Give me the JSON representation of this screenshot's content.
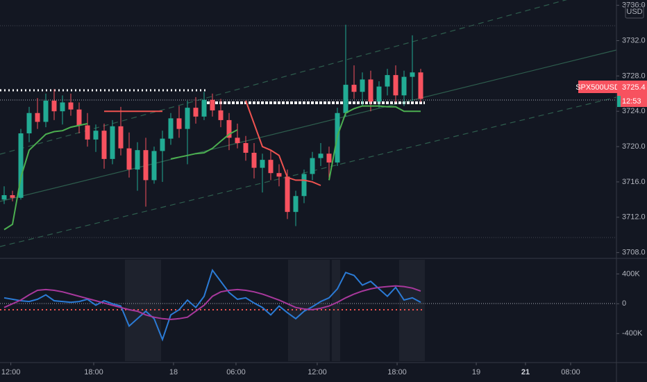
{
  "chart_data": [
    {
      "type": "candlestick",
      "currency": "USD",
      "symbol": "SPX500USD",
      "last_price": 3725.4,
      "countdown": "12:53",
      "up_color": "#22ab94",
      "down_color": "#f7525f",
      "xlim": [
        -0.5,
        73.5
      ],
      "xticks": [
        {
          "value": 0.8,
          "label": "12:00"
        },
        {
          "value": 10.75,
          "label": "18:00"
        },
        {
          "value": 20.33,
          "label": "18"
        },
        {
          "value": 27.83,
          "label": "06:00"
        },
        {
          "value": 37.58,
          "label": "12:00"
        },
        {
          "value": 47.17,
          "label": "18:00"
        },
        {
          "value": 56.67,
          "label": "19"
        },
        {
          "value": 62.58,
          "label": "21"
        },
        {
          "value": 68,
          "label": "08:00"
        }
      ],
      "ylim": [
        3707.5,
        3736.6
      ],
      "yticks": [
        {
          "value": 3708,
          "label": "3708.0"
        },
        {
          "value": 3712,
          "label": "3712.0"
        },
        {
          "value": 3716,
          "label": "3716.0"
        },
        {
          "value": 3720,
          "label": "3720.0"
        },
        {
          "value": 3724,
          "label": "3724.0"
        },
        {
          "value": 3728,
          "label": "3728.0"
        },
        {
          "value": 3732,
          "label": "3732.0"
        },
        {
          "value": 3736,
          "label": "3736.0"
        }
      ],
      "ohlc": [
        [
          3714.0,
          3715.5,
          3713.5,
          3714.5
        ],
        [
          3714.5,
          3715,
          3713.8,
          3714.2
        ],
        [
          3714.2,
          3722,
          3714,
          3721.5
        ],
        [
          3721.5,
          3724.5,
          3720.5,
          3723.8
        ],
        [
          3723.8,
          3725.5,
          3722,
          3722.8
        ],
        [
          3722.8,
          3726,
          3722.2,
          3725.2
        ],
        [
          3725.2,
          3726.5,
          3723,
          3724
        ],
        [
          3724,
          3725.8,
          3722.5,
          3725
        ],
        [
          3725,
          3726,
          3723.5,
          3724.2
        ],
        [
          3724.2,
          3725,
          3721.5,
          3722.4
        ],
        [
          3722.4,
          3723.8,
          3720,
          3720.8
        ],
        [
          3720.8,
          3722.5,
          3719.4,
          3721.8
        ],
        [
          3721.8,
          3722.6,
          3717.5,
          3718.6
        ],
        [
          3718.6,
          3723,
          3718,
          3722.3
        ],
        [
          3722.3,
          3724.5,
          3719,
          3719.8
        ],
        [
          3719.8,
          3721.6,
          3716.5,
          3717.4
        ],
        [
          3717.4,
          3720.5,
          3715,
          3719.6
        ],
        [
          3719.6,
          3721,
          3713.2,
          3716.2
        ],
        [
          3716.2,
          3720,
          3715.8,
          3719.5
        ],
        [
          3719.5,
          3721.8,
          3716,
          3720.9
        ],
        [
          3720.9,
          3723.8,
          3720.2,
          3723.2
        ],
        [
          3723.2,
          3724.6,
          3721,
          3722
        ],
        [
          3722,
          3725.2,
          3718,
          3724.4
        ],
        [
          3724.4,
          3725.6,
          3722.6,
          3723.4
        ],
        [
          3723.4,
          3726.2,
          3723,
          3725.3
        ],
        [
          3725.3,
          3726,
          3723.4,
          3724.1
        ],
        [
          3724.1,
          3725.4,
          3722.2,
          3723
        ],
        [
          3723,
          3723.8,
          3719.6,
          3721
        ],
        [
          3721,
          3722.6,
          3719.8,
          3720.4
        ],
        [
          3720.4,
          3721.2,
          3718.4,
          3719.3
        ],
        [
          3719.3,
          3720.4,
          3716.4,
          3717.6
        ],
        [
          3717.6,
          3719.2,
          3714.8,
          3718.5
        ],
        [
          3718.5,
          3719.6,
          3716.2,
          3717
        ],
        [
          3717,
          3718,
          3715.5,
          3716.6
        ],
        [
          3716.6,
          3717.4,
          3711.8,
          3712.6
        ],
        [
          3712.6,
          3715,
          3711,
          3714.4
        ],
        [
          3714.4,
          3717.4,
          3713.6,
          3716.9
        ],
        [
          3716.9,
          3719.4,
          3716.2,
          3718.7
        ],
        [
          3718.7,
          3720.4,
          3717.8,
          3719.2
        ],
        [
          3719.2,
          3720,
          3716.4,
          3718.2
        ],
        [
          3718.2,
          3724.4,
          3717.8,
          3723.8
        ],
        [
          3723.8,
          3733.8,
          3723.4,
          3727
        ],
        [
          3727,
          3729.2,
          3725.4,
          3726.2
        ],
        [
          3726.2,
          3728.4,
          3724.6,
          3727.6
        ],
        [
          3727.6,
          3728.6,
          3724,
          3725.1
        ],
        [
          3725.1,
          3727.4,
          3724.4,
          3726.8
        ],
        [
          3726.8,
          3728.8,
          3725.8,
          3728.1
        ],
        [
          3728.1,
          3729.2,
          3725,
          3725.8
        ],
        [
          3725.8,
          3728.6,
          3724.6,
          3727.9
        ],
        [
          3727.9,
          3732.6,
          3725.2,
          3728.4
        ],
        [
          3728.4,
          3728.8,
          3725,
          3725.4
        ]
      ],
      "series": [
        {
          "color": "#4caf50",
          "values": [
            3710.6,
            3711.2,
            3716.5,
            3719.6,
            3720.5,
            3721.4,
            3721.7,
            3721.8,
            3722.2,
            3722.4,
            3722.6,
            null,
            null,
            null,
            null,
            null,
            null,
            null,
            null,
            null,
            3718.6,
            3718.8,
            3719,
            3719.2,
            3719.3,
            3719.8,
            3720.6,
            3721.4,
            3721.9,
            null,
            null,
            null,
            null,
            null,
            null,
            null,
            null,
            null,
            null,
            3716.2,
            3721.2,
            3723.8,
            3724.3,
            3724.6,
            3724.6,
            3724.6,
            3724.5,
            3724.5,
            3724,
            3724,
            3724
          ]
        },
        {
          "color": "#f05350",
          "values": [
            null,
            null,
            null,
            null,
            null,
            null,
            null,
            null,
            null,
            null,
            null,
            null,
            3724,
            3724,
            3724,
            3724,
            3724,
            3724,
            3724,
            3724,
            null,
            null,
            null,
            null,
            null,
            null,
            null,
            null,
            null,
            3725.2,
            3722.6,
            3720,
            3719.6,
            3719,
            3716.5,
            3716.2,
            3716.2,
            3716,
            3715.6,
            null,
            null,
            null,
            null,
            null,
            null,
            null,
            null,
            null,
            null,
            null,
            null
          ]
        }
      ]
    },
    {
      "type": "line",
      "ylim": [
        -770000,
        590000
      ],
      "yticks": [
        {
          "value": 400000,
          "label": "400K"
        },
        0,
        {
          "value": -400000,
          "label": "-400K"
        }
      ],
      "series": [
        {
          "color": "#2b7bd6",
          "values": [
            80000,
            60000,
            40000,
            30000,
            60000,
            120000,
            40000,
            30000,
            20000,
            30000,
            60000,
            -20000,
            40000,
            0,
            -30000,
            -300000,
            -200000,
            -100000,
            -200000,
            -480000,
            -150000,
            -80000,
            50000,
            -50000,
            100000,
            450000,
            300000,
            150000,
            60000,
            80000,
            10000,
            -50000,
            -150000,
            -30000,
            -120000,
            -200000,
            -100000,
            -40000,
            30000,
            80000,
            200000,
            420000,
            380000,
            250000,
            300000,
            200000,
            100000,
            220000,
            50000,
            80000,
            20000
          ]
        },
        {
          "color": "#a8389c",
          "values": [
            -50000,
            0,
            50000,
            120000,
            180000,
            190000,
            180000,
            160000,
            130000,
            100000,
            70000,
            40000,
            10000,
            -20000,
            -50000,
            -80000,
            -100000,
            -150000,
            -180000,
            -200000,
            -210000,
            -200000,
            -180000,
            -100000,
            -20000,
            100000,
            160000,
            180000,
            190000,
            180000,
            160000,
            130000,
            90000,
            50000,
            0,
            -50000,
            -70000,
            -80000,
            -60000,
            -30000,
            20000,
            80000,
            130000,
            170000,
            200000,
            220000,
            230000,
            240000,
            230000,
            210000,
            170000
          ]
        }
      ]
    }
  ]
}
